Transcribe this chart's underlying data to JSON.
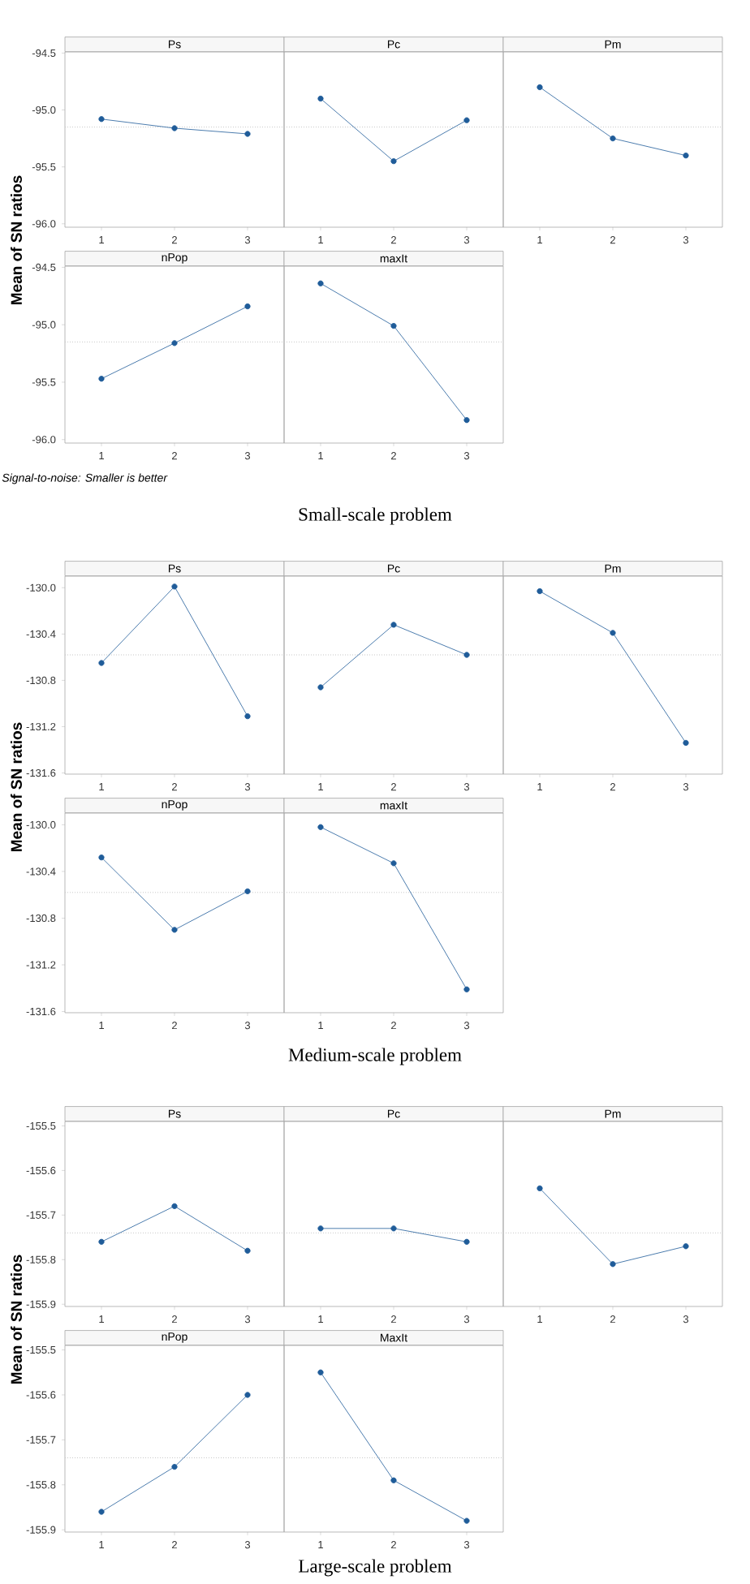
{
  "chart_data": [
    {
      "type": "line",
      "title": "Ps",
      "ylabel": "Mean of SN ratios",
      "categories": [
        "1",
        "2",
        "3"
      ],
      "values": [
        -95.08,
        -95.16,
        -95.21
      ],
      "color": "#1f5c99",
      "marker": "circle",
      "ylim": [
        -96.03,
        -94.49
      ],
      "yticks": [
        {
          "value": -96.0,
          "label": "-96.0"
        },
        {
          "value": -95.5,
          "label": "-95.5"
        },
        {
          "value": -95.0,
          "label": "-95.0"
        },
        {
          "value": -94.5,
          "label": "-94.5"
        }
      ],
      "ref_lines": [
        {
          "axis": "y",
          "value": -95.15,
          "color": "#c8c8c8",
          "line_style": "dotted"
        }
      ]
    },
    {
      "type": "line",
      "title": "Pc",
      "categories": [
        "1",
        "2",
        "3"
      ],
      "values": [
        -94.9,
        -95.45,
        -95.09
      ],
      "color": "#1f5c99",
      "marker": "circle",
      "ylim": [
        -96.03,
        -94.49
      ],
      "tick_labels": "x",
      "ref_lines": [
        {
          "axis": "y",
          "value": -95.15,
          "color": "#c8c8c8",
          "line_style": "dotted"
        }
      ]
    },
    {
      "type": "line",
      "title": "Pm",
      "categories": [
        "1",
        "2",
        "3"
      ],
      "values": [
        -94.8,
        -95.25,
        -95.4
      ],
      "color": "#1f5c99",
      "marker": "circle",
      "ylim": [
        -96.03,
        -94.49
      ],
      "tick_labels": "x",
      "ref_lines": [
        {
          "axis": "y",
          "value": -95.15,
          "color": "#c8c8c8",
          "line_style": "dotted"
        }
      ]
    },
    {
      "type": "line",
      "title": "nPop",
      "categories": [
        "1",
        "2",
        "3"
      ],
      "values": [
        -95.47,
        -95.16,
        -94.84
      ],
      "color": "#1f5c99",
      "marker": "circle",
      "ylim": [
        -96.03,
        -94.49
      ],
      "yticks": [
        {
          "value": -96.0,
          "label": "-96.0"
        },
        {
          "value": -95.5,
          "label": "-95.5"
        },
        {
          "value": -95.0,
          "label": "-95.0"
        },
        {
          "value": -94.5,
          "label": "-94.5"
        }
      ],
      "ref_lines": [
        {
          "axis": "y",
          "value": -95.15,
          "color": "#c8c8c8",
          "line_style": "dotted"
        }
      ],
      "annotations": [
        "Signal-to-noise: Smaller is better",
        "Small-scale problem"
      ]
    },
    {
      "type": "line",
      "title": "maxIt",
      "categories": [
        "1",
        "2",
        "3"
      ],
      "values": [
        -94.64,
        -95.01,
        -95.83
      ],
      "color": "#1f5c99",
      "marker": "circle",
      "ylim": [
        -96.03,
        -94.49
      ],
      "tick_labels": "x",
      "ref_lines": [
        {
          "axis": "y",
          "value": -95.15,
          "color": "#c8c8c8",
          "line_style": "dotted"
        }
      ]
    },
    {
      "type": "line",
      "title": "Ps",
      "ylabel": "Mean of SN ratios",
      "categories": [
        "1",
        "2",
        "3"
      ],
      "values": [
        -130.65,
        -129.99,
        -131.11
      ],
      "color": "#1f5c99",
      "marker": "circle",
      "ylim": [
        -131.61,
        -129.9
      ],
      "yticks": [
        {
          "value": -131.6,
          "label": "-131.6"
        },
        {
          "value": -131.2,
          "label": "-131.2"
        },
        {
          "value": -130.8,
          "label": "-130.8"
        },
        {
          "value": -130.4,
          "label": "-130.4"
        },
        {
          "value": -130.0,
          "label": "-130.0"
        }
      ],
      "ref_lines": [
        {
          "axis": "y",
          "value": -130.58,
          "color": "#c8c8c8",
          "line_style": "dotted"
        }
      ]
    },
    {
      "type": "line",
      "title": "Pc",
      "categories": [
        "1",
        "2",
        "3"
      ],
      "values": [
        -130.86,
        -130.32,
        -130.58
      ],
      "color": "#1f5c99",
      "marker": "circle",
      "ylim": [
        -131.61,
        -129.9
      ],
      "tick_labels": "x",
      "ref_lines": [
        {
          "axis": "y",
          "value": -130.58,
          "color": "#c8c8c8",
          "line_style": "dotted"
        }
      ]
    },
    {
      "type": "line",
      "title": "Pm",
      "categories": [
        "1",
        "2",
        "3"
      ],
      "values": [
        -130.03,
        -130.39,
        -131.34
      ],
      "color": "#1f5c99",
      "marker": "circle",
      "ylim": [
        -131.61,
        -129.9
      ],
      "tick_labels": "x",
      "ref_lines": [
        {
          "axis": "y",
          "value": -130.58,
          "color": "#c8c8c8",
          "line_style": "dotted"
        }
      ]
    },
    {
      "type": "line",
      "title": "nPop",
      "categories": [
        "1",
        "2",
        "3"
      ],
      "values": [
        -130.28,
        -130.9,
        -130.57
      ],
      "color": "#1f5c99",
      "marker": "circle",
      "ylim": [
        -131.61,
        -129.9
      ],
      "yticks": [
        {
          "value": -131.6,
          "label": "-131.6"
        },
        {
          "value": -131.2,
          "label": "-131.2"
        },
        {
          "value": -130.8,
          "label": "-130.8"
        },
        {
          "value": -130.4,
          "label": "-130.4"
        },
        {
          "value": -130.0,
          "label": "-130.0"
        }
      ],
      "ref_lines": [
        {
          "axis": "y",
          "value": -130.58,
          "color": "#c8c8c8",
          "line_style": "dotted"
        }
      ],
      "annotations": [
        "Medium-scale problem"
      ]
    },
    {
      "type": "line",
      "title": "maxIt",
      "categories": [
        "1",
        "2",
        "3"
      ],
      "values": [
        -130.02,
        -130.33,
        -131.41
      ],
      "color": "#1f5c99",
      "marker": "circle",
      "ylim": [
        -131.61,
        -129.9
      ],
      "tick_labels": "x",
      "ref_lines": [
        {
          "axis": "y",
          "value": -130.58,
          "color": "#c8c8c8",
          "line_style": "dotted"
        }
      ]
    },
    {
      "type": "line",
      "title": "Ps",
      "ylabel": "Mean of SN ratios",
      "categories": [
        "1",
        "2",
        "3"
      ],
      "values": [
        -155.76,
        -155.68,
        -155.78
      ],
      "color": "#1f5c99",
      "marker": "circle",
      "ylim": [
        -155.905,
        -155.49
      ],
      "yticks": [
        {
          "value": -155.9,
          "label": "-155.9"
        },
        {
          "value": -155.8,
          "label": "-155.8"
        },
        {
          "value": -155.7,
          "label": "-155.7"
        },
        {
          "value": -155.6,
          "label": "-155.6"
        },
        {
          "value": -155.5,
          "label": "-155.5"
        }
      ],
      "ref_lines": [
        {
          "axis": "y",
          "value": -155.74,
          "color": "#c8c8c8",
          "line_style": "dotted"
        }
      ]
    },
    {
      "type": "line",
      "title": "Pc",
      "categories": [
        "1",
        "2",
        "3"
      ],
      "values": [
        -155.73,
        -155.73,
        -155.76
      ],
      "color": "#1f5c99",
      "marker": "circle",
      "ylim": [
        -155.905,
        -155.49
      ],
      "tick_labels": "x",
      "ref_lines": [
        {
          "axis": "y",
          "value": -155.74,
          "color": "#c8c8c8",
          "line_style": "dotted"
        }
      ]
    },
    {
      "type": "line",
      "title": "Pm",
      "categories": [
        "1",
        "2",
        "3"
      ],
      "values": [
        -155.64,
        -155.81,
        -155.77
      ],
      "color": "#1f5c99",
      "marker": "circle",
      "ylim": [
        -155.905,
        -155.49
      ],
      "tick_labels": "x",
      "ref_lines": [
        {
          "axis": "y",
          "value": -155.74,
          "color": "#c8c8c8",
          "line_style": "dotted"
        }
      ]
    },
    {
      "type": "line",
      "title": "nPop",
      "categories": [
        "1",
        "2",
        "3"
      ],
      "values": [
        -155.86,
        -155.76,
        -155.6
      ],
      "color": "#1f5c99",
      "marker": "circle",
      "ylim": [
        -155.905,
        -155.49
      ],
      "yticks": [
        {
          "value": -155.9,
          "label": "-155.9"
        },
        {
          "value": -155.8,
          "label": "-155.8"
        },
        {
          "value": -155.7,
          "label": "-155.7"
        },
        {
          "value": -155.6,
          "label": "-155.6"
        },
        {
          "value": -155.5,
          "label": "-155.5"
        }
      ],
      "ref_lines": [
        {
          "axis": "y",
          "value": -155.74,
          "color": "#c8c8c8",
          "line_style": "dotted"
        }
      ],
      "annotations": [
        "Large-scale problem"
      ]
    },
    {
      "type": "line",
      "title": "MaxIt",
      "categories": [
        "1",
        "2",
        "3"
      ],
      "values": [
        -155.55,
        -155.79,
        -155.88
      ],
      "color": "#1f5c99",
      "marker": "circle",
      "ylim": [
        -155.905,
        -155.49
      ],
      "tick_labels": "x",
      "ref_lines": [
        {
          "axis": "y",
          "value": -155.74,
          "color": "#c8c8c8",
          "line_style": "dotted"
        }
      ]
    }
  ]
}
